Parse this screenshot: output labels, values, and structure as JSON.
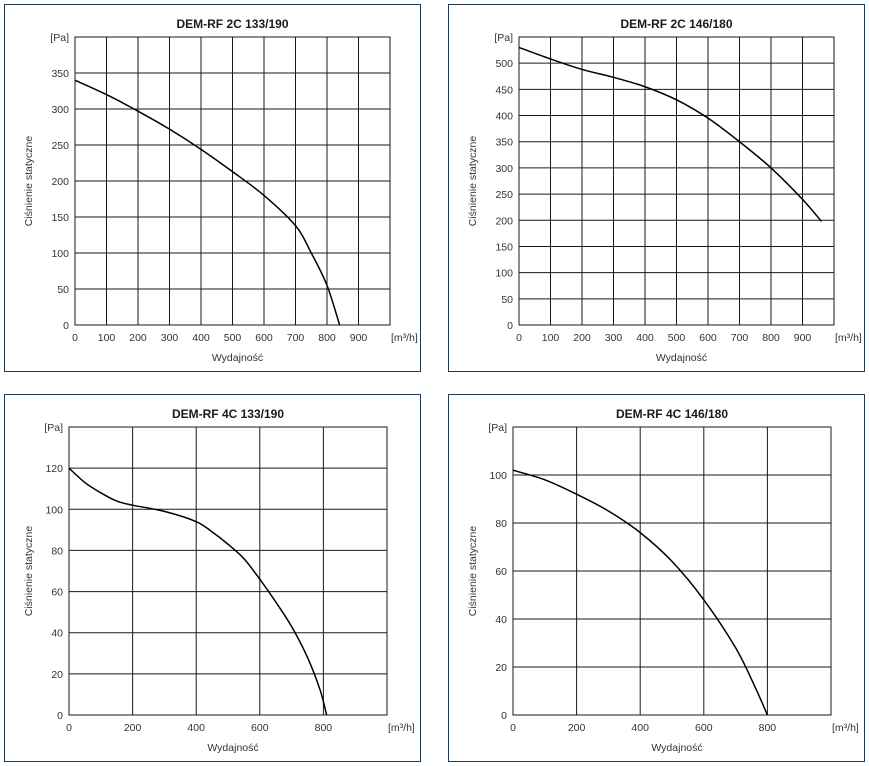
{
  "chart_data": [
    {
      "type": "line",
      "title": "DEM-RF 2C 133/190",
      "xlabel": "Wydajność",
      "ylabel": "Ciśnienie statyczne",
      "x_unit": "[m³/h]",
      "y_unit": "[Pa]",
      "xlim": [
        0,
        1000
      ],
      "ylim": [
        0,
        400
      ],
      "x_ticks": [
        0,
        100,
        200,
        300,
        400,
        500,
        600,
        700,
        800,
        900
      ],
      "y_ticks": [
        0,
        50,
        100,
        150,
        200,
        250,
        300,
        350
      ],
      "grid": true,
      "series": [
        {
          "x": [
            0,
            100,
            200,
            300,
            400,
            500,
            600,
            700,
            750,
            800,
            840
          ],
          "y": [
            340,
            320,
            297,
            272,
            244,
            213,
            180,
            138,
            100,
            55,
            0
          ]
        }
      ]
    },
    {
      "type": "line",
      "title": "DEM-RF 2C 146/180",
      "xlabel": "Wydajność",
      "ylabel": "Ciśnienie statyczne",
      "x_unit": "[m³/h]",
      "y_unit": "[Pa]",
      "xlim": [
        0,
        1000
      ],
      "ylim": [
        0,
        550
      ],
      "x_ticks": [
        0,
        100,
        200,
        300,
        400,
        500,
        600,
        700,
        800,
        900
      ],
      "y_ticks": [
        0,
        50,
        100,
        150,
        200,
        250,
        300,
        350,
        400,
        450,
        500
      ],
      "grid": true,
      "series": [
        {
          "x": [
            0,
            100,
            200,
            300,
            400,
            500,
            600,
            700,
            800,
            900,
            960
          ],
          "y": [
            530,
            508,
            488,
            473,
            455,
            430,
            395,
            350,
            300,
            240,
            198
          ]
        }
      ]
    },
    {
      "type": "line",
      "title": "DEM-RF 4C 133/190",
      "xlabel": "Wydajność",
      "ylabel": "Ciśnienie statyczne",
      "x_unit": "[m³/h]",
      "y_unit": "[Pa]",
      "xlim": [
        0,
        1000
      ],
      "ylim": [
        0,
        140
      ],
      "x_ticks": [
        0,
        200,
        400,
        600,
        800
      ],
      "y_ticks": [
        0,
        20,
        40,
        60,
        80,
        100,
        120
      ],
      "grid": true,
      "series": [
        {
          "x": [
            0,
            50,
            100,
            150,
            200,
            300,
            400,
            450,
            500,
            550,
            600,
            650,
            700,
            750,
            790,
            810
          ],
          "y": [
            120,
            113,
            108,
            104,
            102,
            99,
            94,
            89,
            83,
            76,
            66,
            55,
            43,
            28,
            12,
            0
          ]
        }
      ]
    },
    {
      "type": "line",
      "title": "DEM-RF 4C 146/180",
      "xlabel": "Wydajność",
      "ylabel": "Ciśnienie statyczne",
      "x_unit": "[m³/h]",
      "y_unit": "[Pa]",
      "xlim": [
        0,
        1000
      ],
      "ylim": [
        0,
        120
      ],
      "x_ticks": [
        0,
        200,
        400,
        600,
        800
      ],
      "y_ticks": [
        0,
        20,
        40,
        60,
        80,
        100
      ],
      "grid": true,
      "series": [
        {
          "x": [
            0,
            100,
            200,
            300,
            400,
            500,
            600,
            700,
            760,
            800
          ],
          "y": [
            102,
            98,
            92,
            85,
            76,
            64,
            48,
            28,
            12,
            0
          ]
        }
      ]
    }
  ]
}
